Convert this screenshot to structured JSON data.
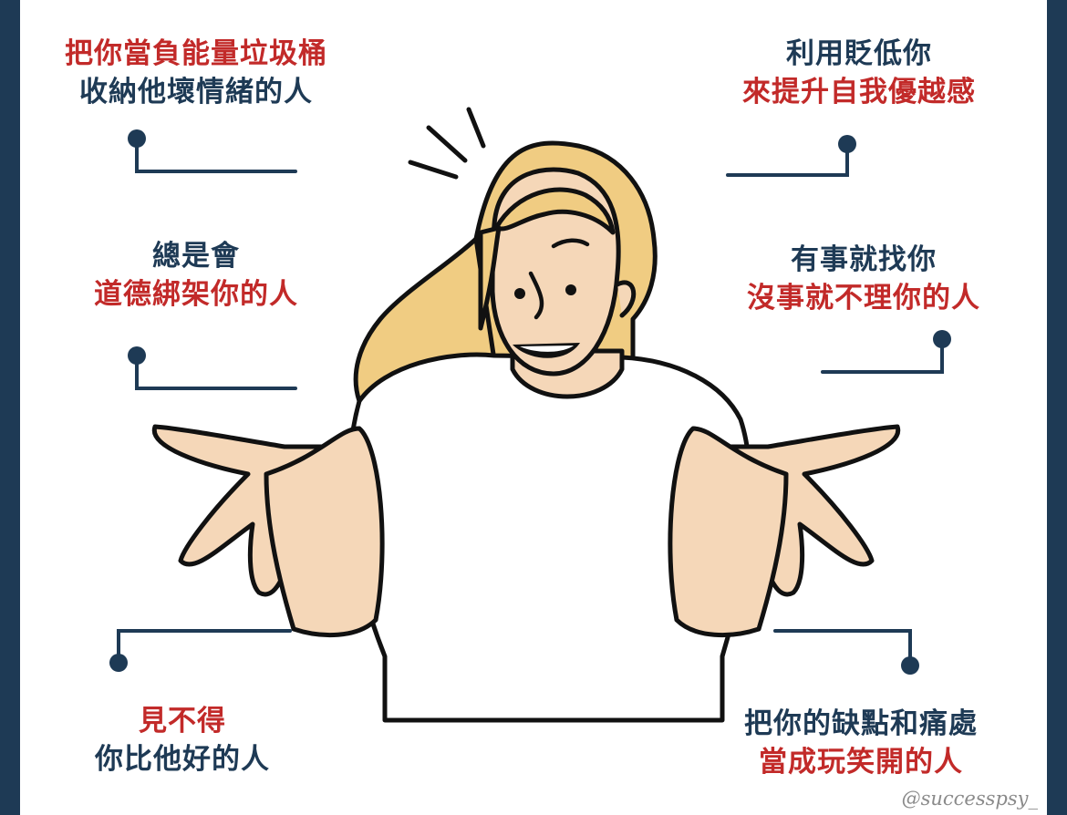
{
  "items": [
    {
      "lines": [
        "把你當負能量垃圾桶",
        "收納他壞情緒的人"
      ],
      "colors": [
        "red",
        "navy"
      ]
    },
    {
      "lines": [
        "利用貶低你",
        "來提升自我優越感"
      ],
      "colors": [
        "navy",
        "red"
      ]
    },
    {
      "lines": [
        "總是會",
        "道德綁架你的人"
      ],
      "colors": [
        "navy",
        "red"
      ]
    },
    {
      "lines": [
        "有事就找你",
        "沒事就不理你的人"
      ],
      "colors": [
        "navy",
        "red"
      ]
    },
    {
      "lines": [
        "見不得",
        "你比他好的人"
      ],
      "colors": [
        "red",
        "navy"
      ]
    },
    {
      "lines": [
        "把你的缺點和痛處",
        "當成玩笑開的人"
      ],
      "colors": [
        "navy",
        "red"
      ]
    }
  ],
  "watermark": "@successpsy_",
  "colors": {
    "navy": "#1e3a55",
    "red": "#c22a29",
    "hair": "#f0cc82",
    "skin": "#f5d7b8",
    "outline": "#111111"
  }
}
